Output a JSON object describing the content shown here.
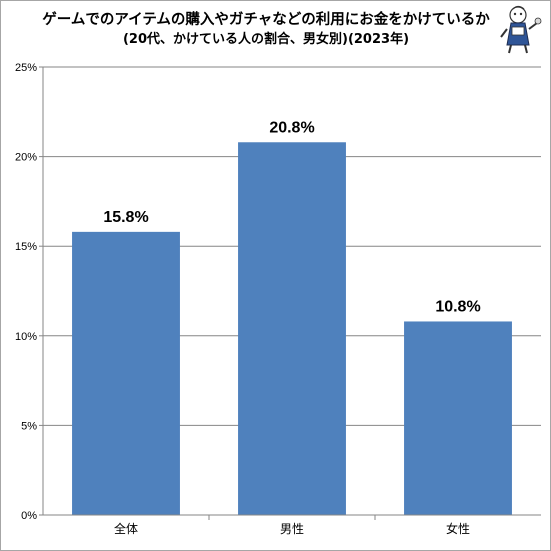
{
  "chart_data": {
    "type": "bar",
    "title": "ゲームでのアイテムの購入やガチャなどの利用にお金をかけているか",
    "subtitle": "(20代、かけている人の割合、男女別)(2023年)",
    "categories": [
      "全体",
      "男性",
      "女性"
    ],
    "values": [
      15.8,
      20.8,
      10.8
    ],
    "data_labels": [
      "15.8%",
      "20.8%",
      "10.8%"
    ],
    "y_ticks": [
      0,
      5,
      10,
      15,
      20,
      25
    ],
    "y_tick_labels": [
      "0%",
      "5%",
      "10%",
      "15%",
      "20%",
      "25%"
    ],
    "ylim": [
      0,
      25
    ],
    "xlabel": "",
    "ylabel": "",
    "grid": true,
    "legend": "none",
    "bar_color": "#4f81bd",
    "grid_color": "#868686"
  },
  "mascot": {
    "icon": "mascot-character-icon"
  }
}
